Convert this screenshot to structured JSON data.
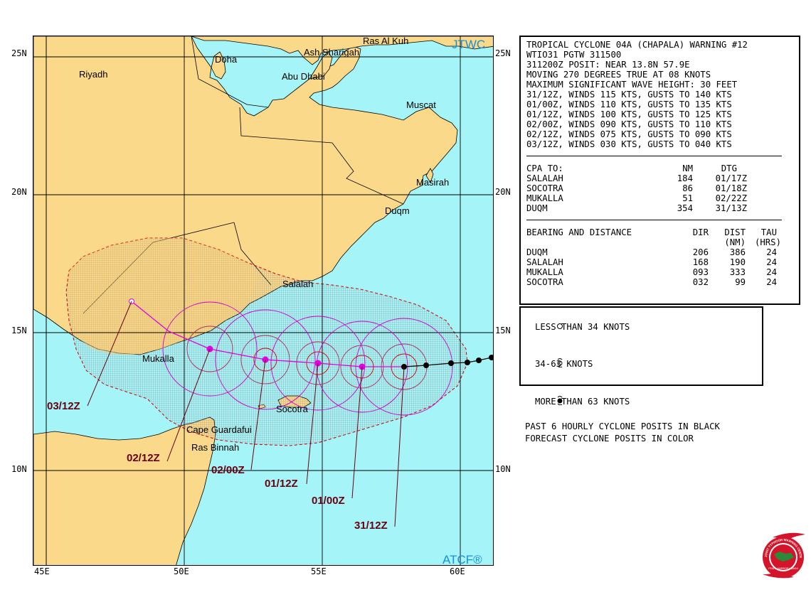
{
  "map": {
    "corner_top_right": "JTWC",
    "corner_bottom_right": "ATCF®",
    "lat_labels": [
      "25N",
      "20N",
      "15N",
      "10N"
    ],
    "lon_labels": [
      "45E",
      "50E",
      "55E",
      "60E"
    ],
    "places": [
      {
        "name": "Ras Al Kuh",
        "id": "ras-al-kuh"
      },
      {
        "name": "Doha",
        "id": "doha"
      },
      {
        "name": "Ash Sharigah",
        "id": "ash-sharigah"
      },
      {
        "name": "Riyadh",
        "id": "riyadh"
      },
      {
        "name": "Abu Dhabi",
        "id": "abu-dhabi"
      },
      {
        "name": "Muscat",
        "id": "muscat"
      },
      {
        "name": "Masirah",
        "id": "masirah"
      },
      {
        "name": "Duqm",
        "id": "duqm"
      },
      {
        "name": "Salalah",
        "id": "salalah"
      },
      {
        "name": "Mukalla",
        "id": "mukalla"
      },
      {
        "name": "Socotra",
        "id": "socotra"
      },
      {
        "name": "Cape Guardafui",
        "id": "cape-guardafui"
      },
      {
        "name": "Ras Binnah",
        "id": "ras-binnah"
      }
    ],
    "forecast_tags": [
      "03/12Z",
      "02/12Z",
      "02/00Z",
      "01/12Z",
      "01/00Z",
      "31/12Z"
    ],
    "colors": {
      "land": "#fbd98a",
      "water": "#a5f4f8",
      "forecast_track": "#e000e0",
      "danger_outline": "#d00000",
      "dtg_text": "#6a0010",
      "past_track": "#000000"
    }
  },
  "warning": {
    "title": "TROPICAL CYCLONE 04A (CHAPALA) WARNING #12",
    "header": "WTIO31 PGTW 311500",
    "posit": "311200Z POSIT: NEAR 13.8N 57.9E",
    "moving": "MOVING 270 DEGREES TRUE AT 08 KNOTS",
    "wave": "MAXIMUM SIGNIFICANT WAVE HEIGHT: 30 FEET",
    "forecasts": [
      "31/12Z, WINDS 115 KTS, GUSTS TO 140 KTS",
      "01/00Z, WINDS 110 KTS, GUSTS TO 135 KTS",
      "01/12Z, WINDS 100 KTS, GUSTS TO 125 KTS",
      "02/00Z, WINDS 090 KTS, GUSTS TO 110 KTS",
      "02/12Z, WINDS 075 KTS, GUSTS TO 090 KTS",
      "03/12Z, WINDS 030 KTS, GUSTS TO 040 KTS"
    ],
    "cpa": {
      "heading": "CPA TO:",
      "col_nm": "NM",
      "col_dtg": "DTG",
      "rows": [
        {
          "place": "SALALAH",
          "nm": "184",
          "dtg": "01/17Z"
        },
        {
          "place": "SOCOTRA",
          "nm": "86",
          "dtg": "01/18Z"
        },
        {
          "place": "MUKALLA",
          "nm": "51",
          "dtg": "02/22Z"
        },
        {
          "place": "DUQM",
          "nm": "354",
          "dtg": "31/13Z"
        }
      ]
    },
    "bearing": {
      "heading": "BEARING AND DISTANCE",
      "col_dir": "DIR",
      "col_dist": "DIST",
      "col_tau": "TAU",
      "sub_nm": "(NM)",
      "sub_hrs": "(HRS)",
      "rows": [
        {
          "place": "DUQM",
          "dir": "206",
          "dist": "386",
          "tau": "24"
        },
        {
          "place": "SALALAH",
          "dir": "168",
          "dist": "190",
          "tau": "24"
        },
        {
          "place": "MUKALLA",
          "dir": "093",
          "dist": "333",
          "tau": "24"
        },
        {
          "place": "SOCOTRA",
          "dir": "032",
          "dist": "99",
          "tau": "24"
        }
      ]
    }
  },
  "legend": {
    "less_34": "LESS THAN 34 KNOTS",
    "k34_63": "34-63 KNOTS",
    "more_63": "MORE THAN 63 KNOTS",
    "past": "PAST 6 HOURLY CYCLONE POSITS IN BLACK",
    "forecast": "FORECAST CYCLONE POSITS IN COLOR"
  },
  "logo": {
    "ring_text": "JOINT TYPHOON WARNING CENTER",
    "bottom_text": "PEARL HARBOR HAWAII"
  }
}
